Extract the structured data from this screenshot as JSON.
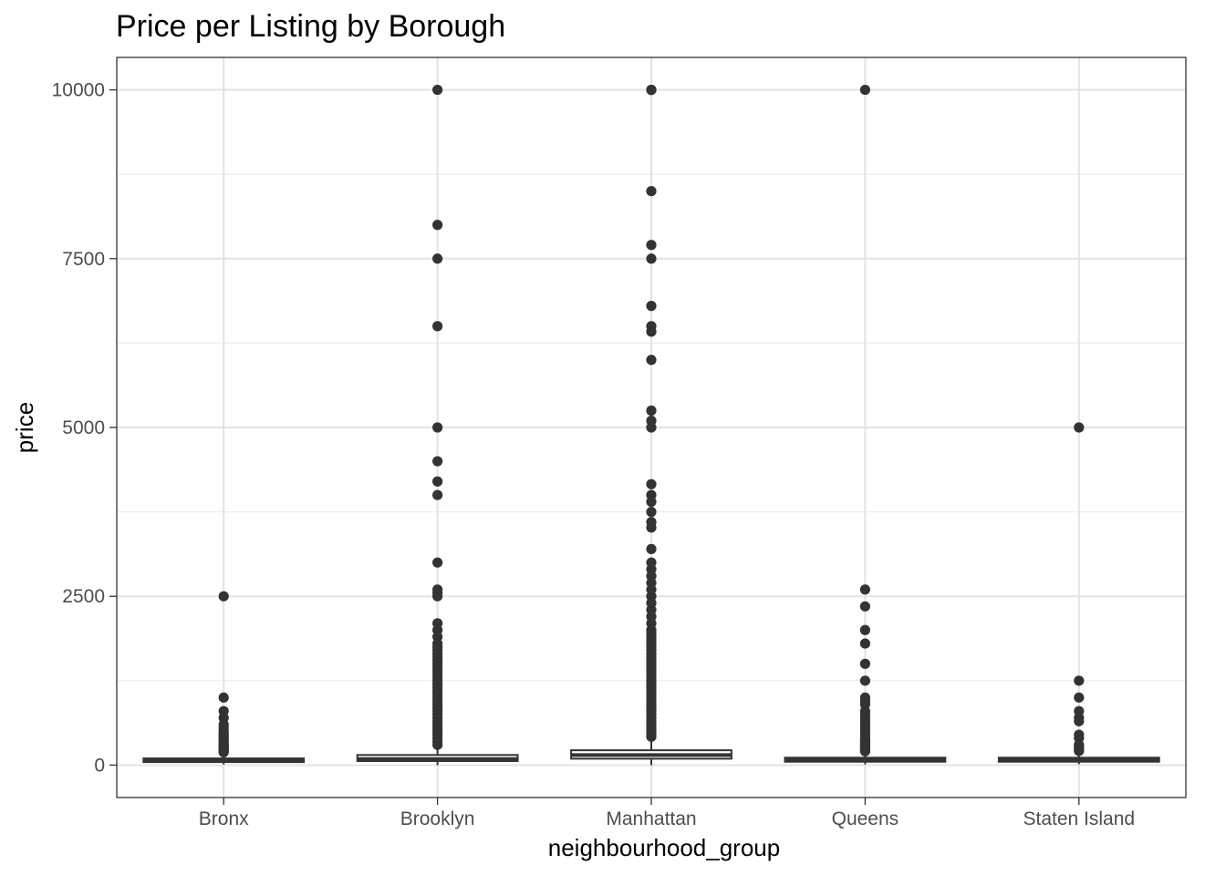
{
  "chart_data": {
    "type": "box",
    "title": "Price per Listing by Borough",
    "xlabel": "neighbourhood_group",
    "ylabel": "price",
    "ylim": [
      -480,
      10480
    ],
    "yticks": [
      0,
      2500,
      5000,
      7500,
      10000
    ],
    "ytick_labels": [
      "0",
      "2500",
      "5000",
      "7500",
      "10000"
    ],
    "grid": true,
    "categories": [
      "Bronx",
      "Brooklyn",
      "Manhattan",
      "Queens",
      "Staten Island"
    ],
    "boxes": [
      {
        "category": "Bronx",
        "min": 10,
        "q1": 45,
        "median": 65,
        "q3": 99,
        "max": 180,
        "outliers": [
          2500,
          1000,
          800,
          700,
          600,
          550,
          500,
          475,
          450,
          425,
          400,
          375,
          350,
          325,
          300,
          290,
          280,
          270,
          260,
          250,
          240,
          230,
          220,
          210,
          200,
          190
        ]
      },
      {
        "category": "Brooklyn",
        "min": 0,
        "q1": 60,
        "median": 90,
        "q3": 150,
        "max": 285,
        "outliers": [
          10000,
          8000,
          7500,
          6500,
          5000,
          4500,
          4200,
          4000,
          3000,
          2600,
          2550,
          2500,
          2100,
          2000,
          1900,
          1800,
          1750,
          1700,
          1650,
          1600,
          1550,
          1500,
          1450,
          1400,
          1350,
          1300,
          1250,
          1200,
          1150,
          1100,
          1050,
          1000,
          950,
          900,
          850,
          800,
          750,
          700,
          650,
          600,
          550,
          500,
          450,
          400,
          350,
          300
        ]
      },
      {
        "category": "Manhattan",
        "min": 0,
        "q1": 95,
        "median": 150,
        "q3": 220,
        "max": 410,
        "outliers": [
          10000,
          9999,
          8500,
          7703,
          7500,
          6800,
          6500,
          6419,
          6000,
          5250,
          5100,
          5000,
          4160,
          4000,
          3900,
          3750,
          3600,
          3518,
          3200,
          3000,
          2900,
          2800,
          2700,
          2600,
          2500,
          2400,
          2300,
          2200,
          2100,
          2000,
          1950,
          1900,
          1850,
          1800,
          1750,
          1700,
          1650,
          1600,
          1550,
          1500,
          1450,
          1400,
          1350,
          1300,
          1250,
          1200,
          1150,
          1100,
          1050,
          1000,
          950,
          900,
          850,
          800,
          750,
          700,
          650,
          600,
          550,
          500,
          450,
          420
        ]
      },
      {
        "category": "Queens",
        "min": 10,
        "q1": 50,
        "median": 75,
        "q3": 110,
        "max": 200,
        "outliers": [
          10000,
          2600,
          2350,
          2000,
          1800,
          1500,
          1250,
          1000,
          950,
          900,
          800,
          750,
          700,
          650,
          600,
          550,
          500,
          450,
          400,
          375,
          350,
          325,
          300,
          280,
          260,
          240,
          220,
          205
        ]
      },
      {
        "category": "Staten Island",
        "min": 13,
        "q1": 50,
        "median": 75,
        "q3": 110,
        "max": 200,
        "outliers": [
          5000,
          1250,
          1000,
          800,
          700,
          650,
          450,
          400,
          300,
          275,
          250,
          225,
          210
        ]
      }
    ]
  }
}
